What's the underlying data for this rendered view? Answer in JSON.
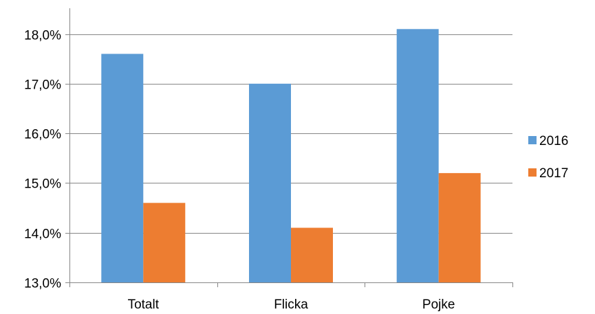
{
  "chart_data": {
    "type": "bar",
    "categories": [
      "Totalt",
      "Flicka",
      "Pojke"
    ],
    "series": [
      {
        "name": "2016",
        "values": [
          17.6,
          17.0,
          18.1
        ],
        "color": "#5B9BD5"
      },
      {
        "name": "2017",
        "values": [
          14.6,
          14.1,
          15.2
        ],
        "color": "#ED7D31"
      }
    ],
    "ylim": [
      13.0,
      18.5
    ],
    "yticks": [
      13.0,
      14.0,
      15.0,
      16.0,
      17.0,
      18.0
    ],
    "ytick_labels": [
      "13,0%",
      "14,0%",
      "15,0%",
      "16,0%",
      "17,0%",
      "18,0%"
    ],
    "grid": true,
    "legend_position": "right",
    "title": "",
    "xlabel": "",
    "ylabel": ""
  }
}
